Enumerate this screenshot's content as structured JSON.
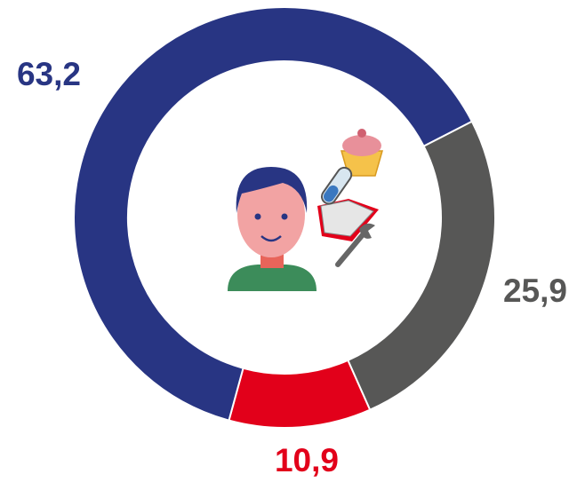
{
  "chart_data": {
    "type": "donut",
    "values": [
      63.2,
      25.9,
      10.9
    ],
    "value_labels": [
      "63,2",
      "25,9",
      "10,9"
    ],
    "colors": [
      "#283583",
      "#575756",
      "#e2001a"
    ]
  }
}
